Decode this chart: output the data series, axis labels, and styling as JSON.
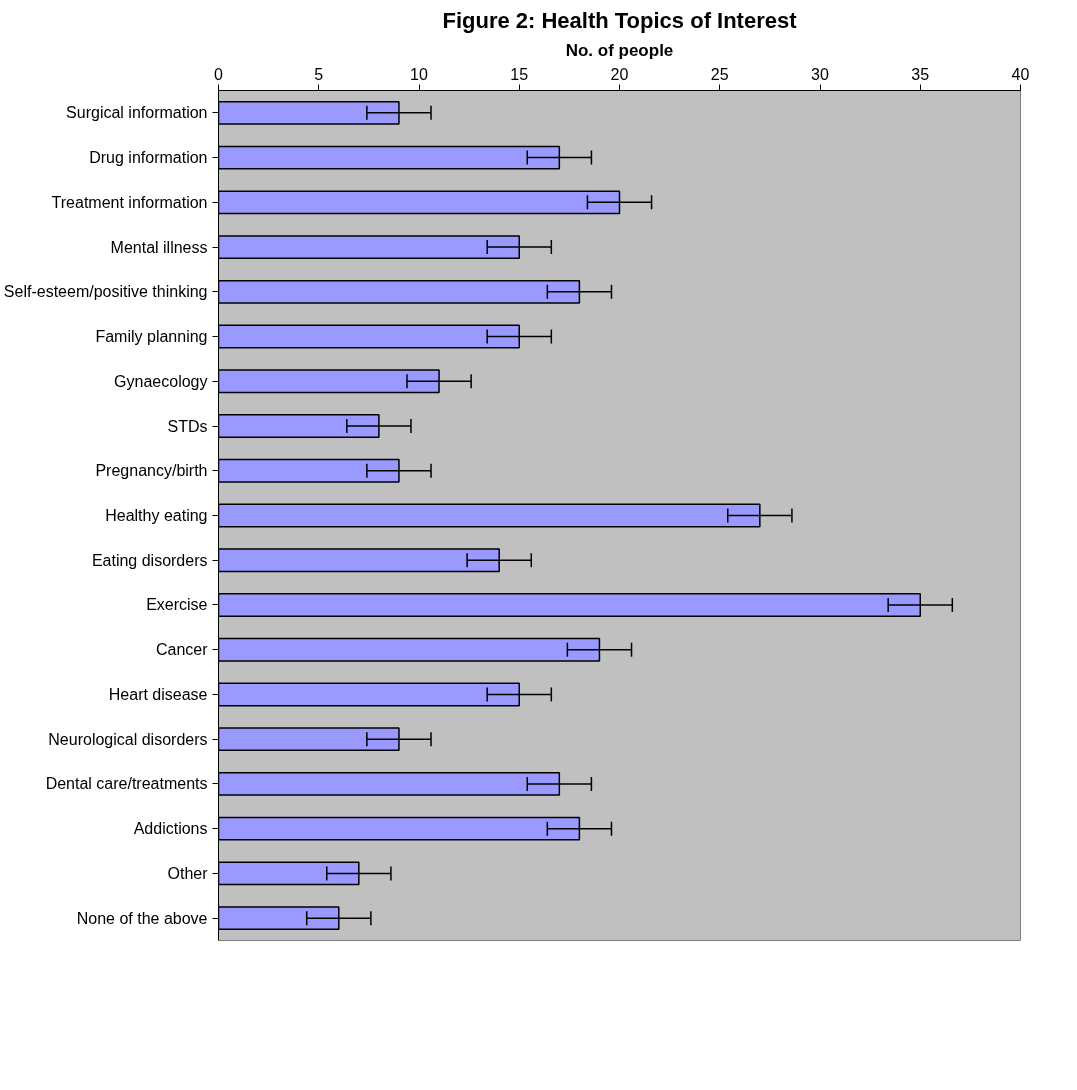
{
  "chart_data": {
    "type": "bar",
    "orientation": "horizontal",
    "title": "Figure 2: Health Topics of Interest",
    "xlabel": "No. of people",
    "categories": [
      "Surgical information",
      "Drug information",
      "Treatment information",
      "Mental illness",
      "Self-esteem/positive thinking",
      "Family planning",
      "Gynaecology",
      "STDs",
      "Pregnancy/birth",
      "Healthy eating",
      "Eating disorders",
      "Exercise",
      "Cancer",
      "Heart disease",
      "Neurological disorders",
      "Dental care/treatments",
      "Addictions",
      "Other",
      "None of the above"
    ],
    "values": [
      9,
      17,
      20,
      15,
      18,
      15,
      11,
      8,
      9,
      27,
      14,
      35,
      19,
      15,
      9,
      17,
      18,
      7,
      6
    ],
    "errors": [
      1.6,
      1.6,
      1.6,
      1.6,
      1.6,
      1.6,
      1.6,
      1.6,
      1.6,
      1.6,
      1.6,
      1.6,
      1.6,
      1.6,
      1.6,
      1.6,
      1.6,
      1.6,
      1.6
    ],
    "color": "#9999ff",
    "xlim": [
      0,
      40
    ],
    "xticks": [
      0,
      5,
      10,
      15,
      20,
      25,
      30,
      35,
      40
    ],
    "grid": false
  }
}
